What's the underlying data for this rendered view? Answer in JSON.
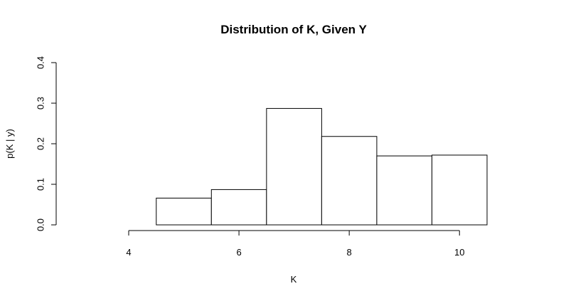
{
  "chart_data": {
    "type": "bar",
    "title": "Distribution of K, Given Y",
    "xlabel": "K",
    "ylabel": "p(K | y)",
    "categories": [
      "5",
      "6",
      "7",
      "8",
      "9",
      "10"
    ],
    "bin_edges": [
      4.5,
      5.5,
      6.5,
      7.5,
      8.5,
      9.5,
      10.5
    ],
    "values": [
      0.066,
      0.087,
      0.287,
      0.218,
      0.17,
      0.172
    ],
    "xlim": [
      4,
      10.5
    ],
    "ylim": [
      0,
      0.4
    ],
    "x_ticks": [
      4,
      6,
      8,
      10
    ],
    "x_tick_labels": [
      "4",
      "6",
      "8",
      "10"
    ],
    "y_ticks": [
      0.0,
      0.1,
      0.2,
      0.3,
      0.4
    ],
    "y_tick_labels": [
      "0.0",
      "0.1",
      "0.2",
      "0.3",
      "0.4"
    ],
    "grid": false,
    "legend": "none",
    "colors": {
      "bar_fill": "#ffffff",
      "bar_stroke": "#000000",
      "axis": "#000000"
    }
  }
}
